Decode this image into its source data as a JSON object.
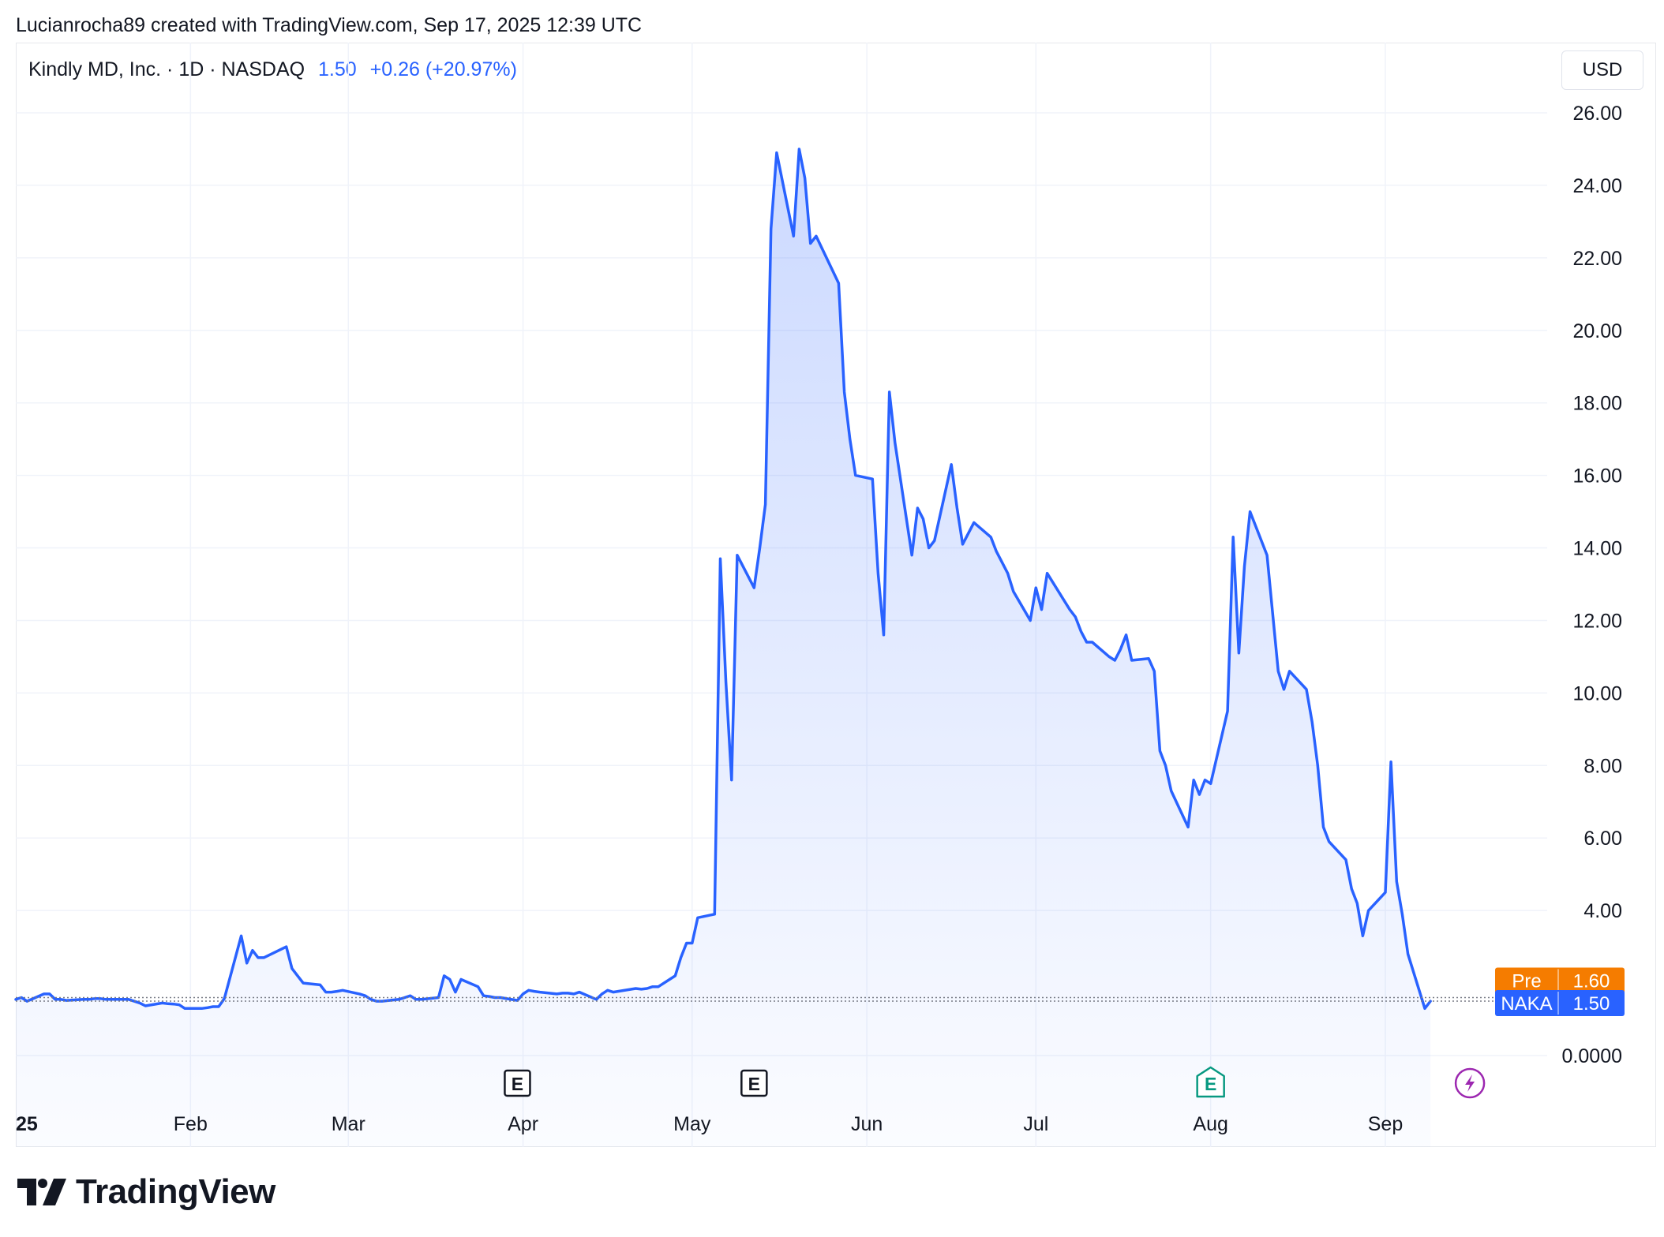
{
  "header": {
    "credit": "Lucianrocha89 created with TradingView.com, Sep 17, 2025 12:39 UTC"
  },
  "legend": {
    "symbol": "Kindly MD, Inc. · 1D · NASDAQ",
    "price": "1.50",
    "change": "+0.26 (+20.97%)"
  },
  "currency_label": "USD",
  "footer": {
    "brand": "TradingView"
  },
  "colors": {
    "line": "#2962ff",
    "premarket": "#f57c00",
    "last_price": "#2962ff",
    "grid": "#f0f3fa",
    "earnings_past": "#131722",
    "earnings_future": "#089981",
    "dividend_event": "#9c27b0"
  },
  "chart_data": {
    "type": "area",
    "title": "Kindly MD, Inc. · 1D · NASDAQ",
    "currency": "USD",
    "ylim": [
      0,
      26
    ],
    "y_ticks": [
      "26.00",
      "24.00",
      "22.00",
      "20.00",
      "18.00",
      "16.00",
      "14.00",
      "12.00",
      "10.00",
      "8.00",
      "6.00",
      "4.00",
      "0.0000"
    ],
    "x_ticks": [
      {
        "label": "25",
        "date": "2025-01-01"
      },
      {
        "label": "Feb",
        "date": "2025-02-01"
      },
      {
        "label": "Mar",
        "date": "2025-03-01"
      },
      {
        "label": "Apr",
        "date": "2025-04-01"
      },
      {
        "label": "May",
        "date": "2025-05-01"
      },
      {
        "label": "Jun",
        "date": "2025-06-01"
      },
      {
        "label": "Jul",
        "date": "2025-07-01"
      },
      {
        "label": "Aug",
        "date": "2025-08-01"
      },
      {
        "label": "Sep",
        "date": "2025-09-01"
      }
    ],
    "grid": true,
    "series": [
      {
        "name": "NAKA",
        "points": [
          [
            "2025-01-01",
            1.55
          ],
          [
            "2025-01-02",
            1.6
          ],
          [
            "2025-01-03",
            1.5
          ],
          [
            "2025-01-06",
            1.7
          ],
          [
            "2025-01-07",
            1.7
          ],
          [
            "2025-01-08",
            1.55
          ],
          [
            "2025-01-09",
            1.55
          ],
          [
            "2025-01-10",
            1.52
          ],
          [
            "2025-01-13",
            1.55
          ],
          [
            "2025-01-14",
            1.55
          ],
          [
            "2025-01-15",
            1.57
          ],
          [
            "2025-01-16",
            1.57
          ],
          [
            "2025-01-17",
            1.55
          ],
          [
            "2025-01-21",
            1.55
          ],
          [
            "2025-01-22",
            1.5
          ],
          [
            "2025-01-23",
            1.45
          ],
          [
            "2025-01-24",
            1.37
          ],
          [
            "2025-01-27",
            1.45
          ],
          [
            "2025-01-28",
            1.43
          ],
          [
            "2025-01-29",
            1.42
          ],
          [
            "2025-01-30",
            1.4
          ],
          [
            "2025-01-31",
            1.3
          ],
          [
            "2025-02-03",
            1.3
          ],
          [
            "2025-02-04",
            1.32
          ],
          [
            "2025-02-05",
            1.35
          ],
          [
            "2025-02-06",
            1.35
          ],
          [
            "2025-02-07",
            1.57
          ],
          [
            "2025-02-10",
            3.3
          ],
          [
            "2025-02-11",
            2.55
          ],
          [
            "2025-02-12",
            2.9
          ],
          [
            "2025-02-13",
            2.7
          ],
          [
            "2025-02-14",
            2.7
          ],
          [
            "2025-02-18",
            3.0
          ],
          [
            "2025-02-19",
            2.4
          ],
          [
            "2025-02-20",
            2.2
          ],
          [
            "2025-02-21",
            2.0
          ],
          [
            "2025-02-24",
            1.95
          ],
          [
            "2025-02-25",
            1.75
          ],
          [
            "2025-02-26",
            1.75
          ],
          [
            "2025-02-27",
            1.77
          ],
          [
            "2025-02-28",
            1.8
          ],
          [
            "2025-03-03",
            1.7
          ],
          [
            "2025-03-04",
            1.65
          ],
          [
            "2025-03-05",
            1.55
          ],
          [
            "2025-03-06",
            1.5
          ],
          [
            "2025-03-07",
            1.5
          ],
          [
            "2025-03-10",
            1.55
          ],
          [
            "2025-03-11",
            1.6
          ],
          [
            "2025-03-12",
            1.65
          ],
          [
            "2025-03-13",
            1.55
          ],
          [
            "2025-03-14",
            1.55
          ],
          [
            "2025-03-17",
            1.6
          ],
          [
            "2025-03-18",
            2.2
          ],
          [
            "2025-03-19",
            2.1
          ],
          [
            "2025-03-20",
            1.75
          ],
          [
            "2025-03-21",
            2.1
          ],
          [
            "2025-03-24",
            1.9
          ],
          [
            "2025-03-25",
            1.65
          ],
          [
            "2025-03-26",
            1.63
          ],
          [
            "2025-03-27",
            1.6
          ],
          [
            "2025-03-28",
            1.6
          ],
          [
            "2025-03-31",
            1.52
          ],
          [
            "2025-04-01",
            1.7
          ],
          [
            "2025-04-02",
            1.8
          ],
          [
            "2025-04-03",
            1.77
          ],
          [
            "2025-04-04",
            1.75
          ],
          [
            "2025-04-07",
            1.7
          ],
          [
            "2025-04-08",
            1.72
          ],
          [
            "2025-04-09",
            1.72
          ],
          [
            "2025-04-10",
            1.7
          ],
          [
            "2025-04-11",
            1.75
          ],
          [
            "2025-04-14",
            1.55
          ],
          [
            "2025-04-15",
            1.7
          ],
          [
            "2025-04-16",
            1.8
          ],
          [
            "2025-04-17",
            1.75
          ],
          [
            "2025-04-21",
            1.85
          ],
          [
            "2025-04-22",
            1.83
          ],
          [
            "2025-04-23",
            1.85
          ],
          [
            "2025-04-24",
            1.9
          ],
          [
            "2025-04-25",
            1.9
          ],
          [
            "2025-04-28",
            2.2
          ],
          [
            "2025-04-29",
            2.7
          ],
          [
            "2025-04-30",
            3.1
          ],
          [
            "2025-05-01",
            3.1
          ],
          [
            "2025-05-02",
            3.8
          ],
          [
            "2025-05-05",
            3.9
          ],
          [
            "2025-05-06",
            13.7
          ],
          [
            "2025-05-07",
            10.3
          ],
          [
            "2025-05-08",
            7.6
          ],
          [
            "2025-05-09",
            13.8
          ],
          [
            "2025-05-12",
            12.9
          ],
          [
            "2025-05-13",
            14.0
          ],
          [
            "2025-05-14",
            15.2
          ],
          [
            "2025-05-15",
            22.8
          ],
          [
            "2025-05-16",
            24.9
          ],
          [
            "2025-05-19",
            22.6
          ],
          [
            "2025-05-20",
            25.0
          ],
          [
            "2025-05-21",
            24.2
          ],
          [
            "2025-05-22",
            22.4
          ],
          [
            "2025-05-23",
            22.6
          ],
          [
            "2025-05-27",
            21.3
          ],
          [
            "2025-05-28",
            18.3
          ],
          [
            "2025-05-29",
            17.0
          ],
          [
            "2025-05-30",
            16.0
          ],
          [
            "2025-06-02",
            15.9
          ],
          [
            "2025-06-03",
            13.3
          ],
          [
            "2025-06-04",
            11.6
          ],
          [
            "2025-06-05",
            18.3
          ],
          [
            "2025-06-06",
            16.9
          ],
          [
            "2025-06-09",
            13.8
          ],
          [
            "2025-06-10",
            15.1
          ],
          [
            "2025-06-11",
            14.8
          ],
          [
            "2025-06-12",
            14.0
          ],
          [
            "2025-06-13",
            14.2
          ],
          [
            "2025-06-16",
            16.3
          ],
          [
            "2025-06-17",
            15.1
          ],
          [
            "2025-06-18",
            14.1
          ],
          [
            "2025-06-20",
            14.7
          ],
          [
            "2025-06-23",
            14.3
          ],
          [
            "2025-06-24",
            13.9
          ],
          [
            "2025-06-25",
            13.6
          ],
          [
            "2025-06-26",
            13.3
          ],
          [
            "2025-06-27",
            12.8
          ],
          [
            "2025-06-30",
            12.0
          ],
          [
            "2025-07-01",
            12.9
          ],
          [
            "2025-07-02",
            12.3
          ],
          [
            "2025-07-03",
            13.3
          ],
          [
            "2025-07-07",
            12.3
          ],
          [
            "2025-07-08",
            12.1
          ],
          [
            "2025-07-09",
            11.7
          ],
          [
            "2025-07-10",
            11.4
          ],
          [
            "2025-07-11",
            11.4
          ],
          [
            "2025-07-14",
            11.0
          ],
          [
            "2025-07-15",
            10.9
          ],
          [
            "2025-07-16",
            11.2
          ],
          [
            "2025-07-17",
            11.6
          ],
          [
            "2025-07-18",
            10.9
          ],
          [
            "2025-07-21",
            10.95
          ],
          [
            "2025-07-22",
            10.6
          ],
          [
            "2025-07-23",
            8.4
          ],
          [
            "2025-07-24",
            8.0
          ],
          [
            "2025-07-25",
            7.3
          ],
          [
            "2025-07-28",
            6.3
          ],
          [
            "2025-07-29",
            7.6
          ],
          [
            "2025-07-30",
            7.2
          ],
          [
            "2025-07-31",
            7.6
          ],
          [
            "2025-08-01",
            7.5
          ],
          [
            "2025-08-04",
            9.5
          ],
          [
            "2025-08-05",
            14.3
          ],
          [
            "2025-08-06",
            11.1
          ],
          [
            "2025-08-07",
            13.5
          ],
          [
            "2025-08-08",
            15.0
          ],
          [
            "2025-08-11",
            13.8
          ],
          [
            "2025-08-12",
            12.2
          ],
          [
            "2025-08-13",
            10.6
          ],
          [
            "2025-08-14",
            10.1
          ],
          [
            "2025-08-15",
            10.6
          ],
          [
            "2025-08-18",
            10.1
          ],
          [
            "2025-08-19",
            9.2
          ],
          [
            "2025-08-20",
            8.0
          ],
          [
            "2025-08-21",
            6.3
          ],
          [
            "2025-08-22",
            5.9
          ],
          [
            "2025-08-25",
            5.4
          ],
          [
            "2025-08-26",
            4.6
          ],
          [
            "2025-08-27",
            4.2
          ],
          [
            "2025-08-28",
            3.3
          ],
          [
            "2025-08-29",
            4.0
          ],
          [
            "2025-09-01",
            4.5
          ],
          [
            "2025-09-02",
            8.1
          ],
          [
            "2025-09-03",
            4.8
          ],
          [
            "2025-09-04",
            3.9
          ],
          [
            "2025-09-05",
            2.8
          ],
          [
            "2025-09-08",
            1.3
          ],
          [
            "2025-09-09",
            1.5
          ]
        ]
      }
    ],
    "price_labels": [
      {
        "name": "Pre",
        "value": 1.6,
        "text": "1.60"
      },
      {
        "name": "NAKA",
        "value": 1.5,
        "text": "1.50"
      }
    ],
    "events": [
      {
        "type": "earnings",
        "label": "E",
        "date": "2025-03-31",
        "status": "past"
      },
      {
        "type": "earnings",
        "label": "E",
        "date": "2025-05-12",
        "status": "past"
      },
      {
        "type": "earnings",
        "label": "E",
        "date": "2025-08-01",
        "status": "upcoming"
      },
      {
        "type": "dividend",
        "label": "",
        "date": "2025-09-16",
        "status": "upcoming"
      }
    ]
  }
}
